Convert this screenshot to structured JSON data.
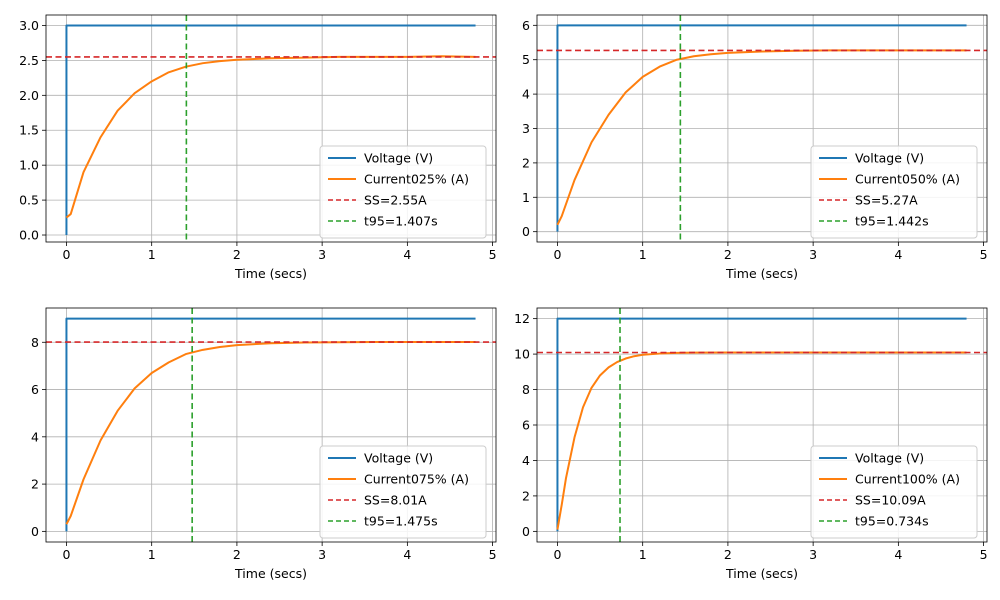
{
  "colors": {
    "voltage": "#1f77b4",
    "current": "#ff7f0e",
    "steady_state": "#d62728",
    "t95": "#2ca02c",
    "grid": "#b0b0b0",
    "axes": "#000000"
  },
  "chart_data": [
    {
      "type": "line",
      "xlabel": "Time (secs)",
      "ylabel": "",
      "xlim": [
        -0.24,
        5.04
      ],
      "ylim": [
        -0.1,
        3.15
      ],
      "xticks": [
        "0",
        "1",
        "2",
        "3",
        "4",
        "5"
      ],
      "yticks": [
        "0.0",
        "0.5",
        "1.0",
        "1.5",
        "2.0",
        "2.5",
        "3.0"
      ],
      "grid": true,
      "legend_position": "lower right",
      "series": [
        {
          "name": "Voltage (V)",
          "role": "voltage",
          "x": [
            0,
            0,
            4.8
          ],
          "y": [
            0,
            3.0,
            3.0
          ]
        },
        {
          "name": "Current025% (A)",
          "role": "current",
          "x": [
            0,
            0.05,
            0.2,
            0.4,
            0.6,
            0.8,
            1.0,
            1.2,
            1.4,
            1.6,
            1.8,
            2.0,
            2.4,
            2.8,
            3.2,
            3.6,
            4.0,
            4.4,
            4.8
          ],
          "y": [
            0.25,
            0.3,
            0.9,
            1.4,
            1.78,
            2.03,
            2.2,
            2.33,
            2.41,
            2.46,
            2.49,
            2.51,
            2.53,
            2.54,
            2.55,
            2.55,
            2.55,
            2.56,
            2.55
          ]
        },
        {
          "name": "SS=2.55A",
          "role": "steady_state",
          "value": 2.55
        },
        {
          "name": "t95=1.407s",
          "role": "t95",
          "value": 1.407
        }
      ]
    },
    {
      "type": "line",
      "xlabel": "Time (secs)",
      "ylabel": "",
      "xlim": [
        -0.24,
        5.04
      ],
      "ylim": [
        -0.3,
        6.3
      ],
      "xticks": [
        "0",
        "1",
        "2",
        "3",
        "4",
        "5"
      ],
      "yticks": [
        "0",
        "1",
        "2",
        "3",
        "4",
        "5",
        "6"
      ],
      "grid": true,
      "legend_position": "lower right",
      "series": [
        {
          "name": "Voltage (V)",
          "role": "voltage",
          "x": [
            0,
            0,
            4.8
          ],
          "y": [
            0,
            6.0,
            6.0
          ]
        },
        {
          "name": "Current050% (A)",
          "role": "current",
          "x": [
            0,
            0.05,
            0.2,
            0.4,
            0.6,
            0.8,
            1.0,
            1.2,
            1.4,
            1.6,
            1.8,
            2.0,
            2.4,
            2.8,
            3.2,
            3.6,
            4.0,
            4.4,
            4.8
          ],
          "y": [
            0.2,
            0.45,
            1.5,
            2.6,
            3.4,
            4.05,
            4.5,
            4.8,
            5.0,
            5.1,
            5.16,
            5.2,
            5.24,
            5.26,
            5.27,
            5.27,
            5.27,
            5.27,
            5.27
          ]
        },
        {
          "name": "SS=5.27A",
          "role": "steady_state",
          "value": 5.27
        },
        {
          "name": "t95=1.442s",
          "role": "t95",
          "value": 1.442
        }
      ]
    },
    {
      "type": "line",
      "xlabel": "Time (secs)",
      "ylabel": "",
      "xlim": [
        -0.24,
        5.04
      ],
      "ylim": [
        -0.45,
        9.45
      ],
      "xticks": [
        "0",
        "1",
        "2",
        "3",
        "4",
        "5"
      ],
      "yticks": [
        "0",
        "2",
        "4",
        "6",
        "8"
      ],
      "grid": true,
      "legend_position": "lower right",
      "series": [
        {
          "name": "Voltage (V)",
          "role": "voltage",
          "x": [
            0,
            0,
            4.8
          ],
          "y": [
            0,
            9.0,
            9.0
          ]
        },
        {
          "name": "Current075% (A)",
          "role": "current",
          "x": [
            0,
            0.05,
            0.2,
            0.4,
            0.6,
            0.8,
            1.0,
            1.2,
            1.4,
            1.6,
            1.8,
            2.0,
            2.4,
            2.8,
            3.2,
            3.6,
            4.0,
            4.4,
            4.8
          ],
          "y": [
            0.3,
            0.65,
            2.2,
            3.85,
            5.1,
            6.05,
            6.7,
            7.15,
            7.5,
            7.68,
            7.8,
            7.88,
            7.96,
            7.99,
            8.0,
            8.01,
            8.01,
            8.01,
            8.01
          ]
        },
        {
          "name": "SS=8.01A",
          "role": "steady_state",
          "value": 8.01
        },
        {
          "name": "t95=1.475s",
          "role": "t95",
          "value": 1.475
        }
      ]
    },
    {
      "type": "line",
      "xlabel": "Time (secs)",
      "ylabel": "",
      "xlim": [
        -0.24,
        5.04
      ],
      "ylim": [
        -0.6,
        12.6
      ],
      "xticks": [
        "0",
        "1",
        "2",
        "3",
        "4",
        "5"
      ],
      "yticks": [
        "0",
        "2",
        "4",
        "6",
        "8",
        "10",
        "12"
      ],
      "grid": true,
      "legend_position": "lower right",
      "series": [
        {
          "name": "Voltage (V)",
          "role": "voltage",
          "x": [
            0,
            0,
            4.8
          ],
          "y": [
            0,
            12.0,
            12.0
          ]
        },
        {
          "name": "Current100% (A)",
          "role": "current",
          "x": [
            0,
            0.05,
            0.1,
            0.2,
            0.3,
            0.4,
            0.5,
            0.6,
            0.7,
            0.8,
            0.9,
            1.0,
            1.2,
            1.4,
            1.6,
            2.0,
            2.5,
            3.0,
            4.0,
            4.8
          ],
          "y": [
            0.1,
            1.5,
            3.0,
            5.3,
            7.0,
            8.1,
            8.8,
            9.25,
            9.55,
            9.75,
            9.88,
            9.96,
            10.03,
            10.07,
            10.08,
            10.09,
            10.09,
            10.09,
            10.09,
            10.09
          ]
        },
        {
          "name": "SS=10.09A",
          "role": "steady_state",
          "value": 10.09
        },
        {
          "name": "t95=0.734s",
          "role": "t95",
          "value": 0.734
        }
      ]
    }
  ]
}
